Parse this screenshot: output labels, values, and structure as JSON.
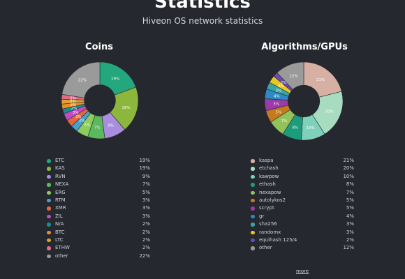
{
  "header": {
    "title": "Statistics",
    "subtitle": "Hiveon OS network statistics"
  },
  "coins": {
    "title": "Coins",
    "items": [
      {
        "label": "ETC",
        "pct": "19%",
        "value": 19,
        "color": "#24a77d"
      },
      {
        "label": "KAS",
        "pct": "19%",
        "value": 19,
        "color": "#8db63c"
      },
      {
        "label": "RVN",
        "pct": "9%",
        "value": 9,
        "color": "#a98ee0"
      },
      {
        "label": "NEXA",
        "pct": "7%",
        "value": 7,
        "color": "#5bb85d"
      },
      {
        "label": "ERG",
        "pct": "5%",
        "value": 5,
        "color": "#8ccd5d"
      },
      {
        "label": "RTM",
        "pct": "3%",
        "value": 3,
        "color": "#4aa0c9"
      },
      {
        "label": "XMR",
        "pct": "3%",
        "value": 3,
        "color": "#e2663f"
      },
      {
        "label": "ZIL",
        "pct": "3%",
        "value": 3,
        "color": "#c44bc5"
      },
      {
        "label": "N/A",
        "pct": "2%",
        "value": 2,
        "color": "#1c8b8b"
      },
      {
        "label": "BTC",
        "pct": "2%",
        "value": 2,
        "color": "#f08b2d"
      },
      {
        "label": "LTC",
        "pct": "2%",
        "value": 2,
        "color": "#e0a32a"
      },
      {
        "label": "ETHW",
        "pct": "2%",
        "value": 2,
        "color": "#e06b86"
      },
      {
        "label": "other",
        "pct": "22%",
        "value": 22,
        "color": "#9a9a9a"
      }
    ]
  },
  "algorithms": {
    "title": "Algorithms/GPUs",
    "items": [
      {
        "label": "kaspa",
        "pct": "21%",
        "value": 21,
        "color": "#d6b0a3"
      },
      {
        "label": "etchash",
        "pct": "20%",
        "value": 20,
        "color": "#a7dcc1"
      },
      {
        "label": "kawpow",
        "pct": "10%",
        "value": 10,
        "color": "#7fd1bb"
      },
      {
        "label": "ethash",
        "pct": "8%",
        "value": 8,
        "color": "#1d9c7c"
      },
      {
        "label": "nexapow",
        "pct": "7%",
        "value": 7,
        "color": "#94c25a"
      },
      {
        "label": "autolykos2",
        "pct": "5%",
        "value": 5,
        "color": "#c47a1f"
      },
      {
        "label": "scrypt",
        "pct": "5%",
        "value": 5,
        "color": "#9b3aa8"
      },
      {
        "label": "gr",
        "pct": "4%",
        "value": 4,
        "color": "#2c8bc4"
      },
      {
        "label": "sha256",
        "pct": "3%",
        "value": 3,
        "color": "#3aa3a3"
      },
      {
        "label": "randomx",
        "pct": "3%",
        "value": 3,
        "color": "#e8c71f"
      },
      {
        "label": "equihash 125/4",
        "pct": "2%",
        "value": 2,
        "color": "#6a4bb5"
      },
      {
        "label": "other",
        "pct": "12%",
        "value": 12,
        "color": "#9a9a9a"
      }
    ]
  },
  "more_label": "more"
}
